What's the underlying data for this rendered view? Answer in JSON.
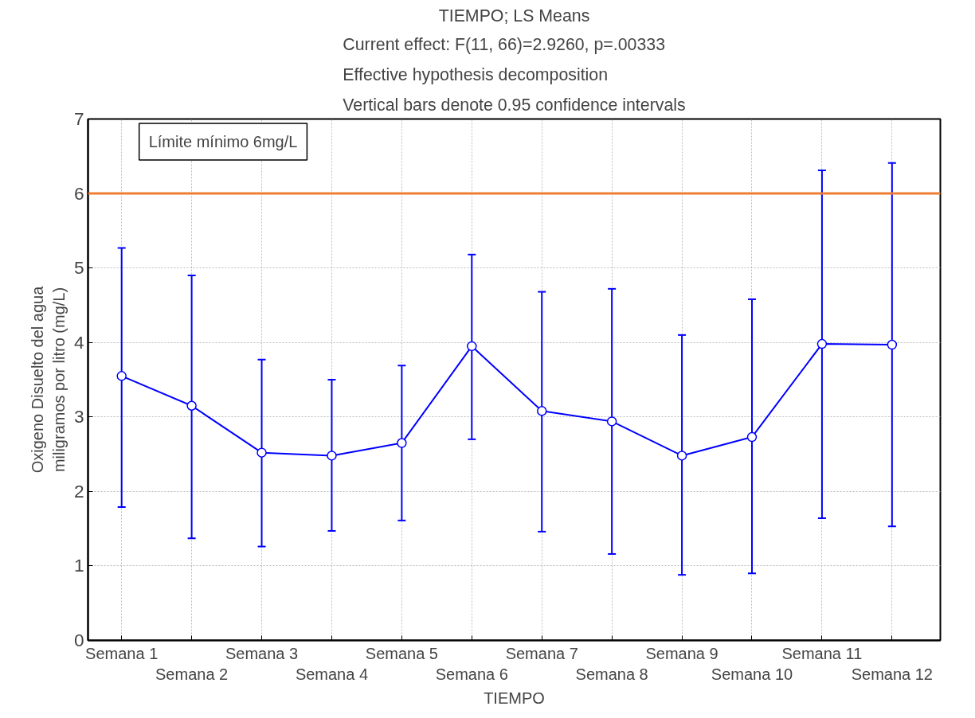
{
  "chart_data": {
    "type": "line",
    "title": "TIEMPO; LS Means",
    "subtitle": "Current effect: F(11, 66)=2.9260, p=.00333\nEffective hypothesis decomposition\nVertical bars denote 0.95 confidence intervals",
    "xlabel": "TIEMPO",
    "ylabel": "Oxigeno Disuelto del agua\nmiligramos por litro (mg/L)",
    "categories": [
      "Semana 1",
      "Semana 2",
      "Semana 3",
      "Semana 4",
      "Semana 5",
      "Semana 6",
      "Semana 7",
      "Semana 8",
      "Semana 9",
      "Semana 10",
      "Semana 11",
      "Semana 12"
    ],
    "series": [
      {
        "color": "#0000ff",
        "values": [
          3.55,
          3.15,
          2.52,
          2.48,
          2.65,
          3.95,
          3.08,
          2.94,
          2.48,
          2.73,
          3.98,
          3.97
        ],
        "errors": [
          [
            1.79,
            5.27
          ],
          [
            1.37,
            4.9
          ],
          [
            1.26,
            3.77
          ],
          [
            1.47,
            3.5
          ],
          [
            1.61,
            3.69
          ],
          [
            2.7,
            5.18
          ],
          [
            1.46,
            4.68
          ],
          [
            1.16,
            4.72
          ],
          [
            0.88,
            4.1
          ],
          [
            0.9,
            4.58
          ],
          [
            1.64,
            6.31
          ],
          [
            1.53,
            6.41
          ]
        ]
      }
    ],
    "ylim": [
      0,
      7
    ],
    "yticks": [
      0,
      1,
      2,
      3,
      4,
      5,
      6,
      7
    ],
    "ref_lines": [
      {
        "axis": "y",
        "value": 6,
        "label": "Límite mínimo 6mg/L",
        "color": "#ed7d31"
      }
    ],
    "grid": true,
    "marker": "circle",
    "line_style": "solid"
  }
}
